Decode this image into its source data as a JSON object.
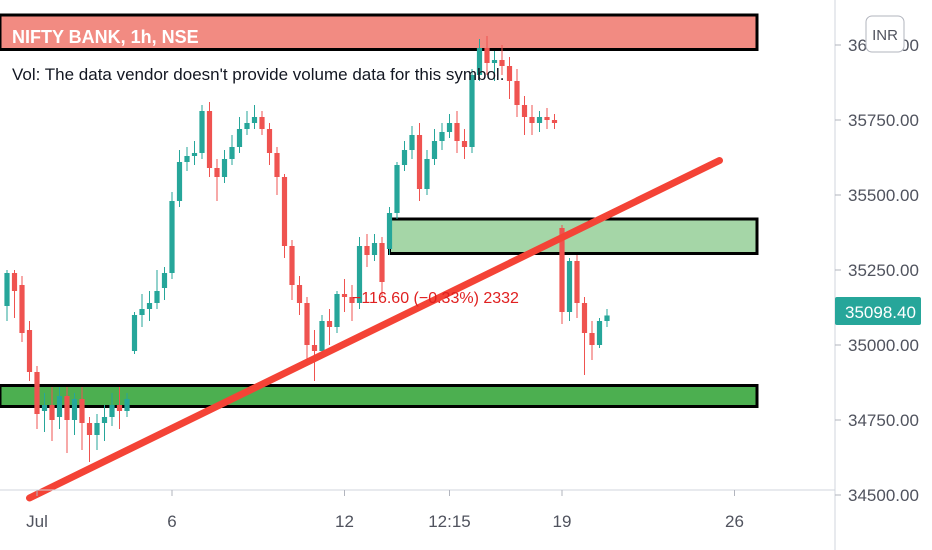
{
  "chart_data": {
    "type": "candlestick",
    "title": "NIFTY BANK, 1h, NSE",
    "volume_note": "Vol: The data vendor doesn't provide volume data for this symbol.",
    "currency_badge": "INR",
    "yticks": [
      {
        "value": 36000,
        "label": "36000.00"
      },
      {
        "value": 35750,
        "label": "35750.00"
      },
      {
        "value": 35500,
        "label": "35500.00"
      },
      {
        "value": 35250,
        "label": "35250.00"
      },
      {
        "value": 35000,
        "label": "35000.00"
      },
      {
        "value": 34750,
        "label": "34750.00"
      },
      {
        "value": 34500,
        "label": "34500.00"
      }
    ],
    "xticks": [
      {
        "bar": 4,
        "label": "Jul"
      },
      {
        "bar": 22,
        "label": "6"
      },
      {
        "bar": 45,
        "label": "12"
      },
      {
        "bar": 59,
        "label": "12:15"
      },
      {
        "bar": 74,
        "label": "19"
      },
      {
        "bar": 97,
        "label": "26"
      }
    ],
    "last_price": {
      "value": 35098.4,
      "label": "35098.40"
    },
    "measure_text": "−116.60 (−0.33%)  2332",
    "trend_line": {
      "from": {
        "bar": 3,
        "price": 34490
      },
      "to": {
        "bar": 95,
        "price": 35615
      }
    },
    "zones": [
      {
        "name": "resistance",
        "from_bar": -4,
        "to_bar": 100,
        "top": 36100,
        "bottom": 35985
      },
      {
        "name": "mid",
        "from_bar": 51,
        "to_bar": 100,
        "top": 35420,
        "bottom": 35305
      },
      {
        "name": "support",
        "from_bar": -4,
        "to_bar": 100,
        "top": 34865,
        "bottom": 34795
      }
    ],
    "colors": {
      "up": "#26a69a",
      "down": "#ef5350",
      "trend": "#f44336",
      "zone_red": "#f28b82",
      "zone_green": "#4caf50",
      "zone_mid": "#a5d6a7",
      "last_price_bg": "#26a69a"
    },
    "candles": [
      [
        35130,
        35250,
        35240,
        35080
      ],
      [
        35240,
        35250,
        35180,
        35090
      ],
      [
        35200,
        35230,
        35040,
        35010
      ],
      [
        35050,
        35080,
        34910,
        34880
      ],
      [
        34910,
        34930,
        34770,
        34720
      ],
      [
        34780,
        34840,
        34800,
        34710
      ],
      [
        34800,
        34860,
        34750,
        34680
      ],
      [
        34760,
        34860,
        34830,
        34720
      ],
      [
        34830,
        34860,
        34750,
        34640
      ],
      [
        34750,
        34840,
        34820,
        34700
      ],
      [
        34820,
        34860,
        34740,
        34650
      ],
      [
        34740,
        34760,
        34700,
        34610
      ],
      [
        34700,
        34770,
        34740,
        34650
      ],
      [
        34740,
        34800,
        34760,
        34680
      ],
      [
        34760,
        34840,
        34800,
        34730
      ],
      [
        34800,
        34860,
        34780,
        34720
      ],
      [
        34780,
        34840,
        34820,
        34760
      ],
      [
        34980,
        35110,
        35100,
        34970
      ],
      [
        35100,
        35170,
        35120,
        35060
      ],
      [
        35120,
        35180,
        35140,
        35080
      ],
      [
        35140,
        35250,
        35180,
        35120
      ],
      [
        35190,
        35260,
        35240,
        35150
      ],
      [
        35240,
        35510,
        35480,
        35220
      ],
      [
        35480,
        35650,
        35610,
        35460
      ],
      [
        35610,
        35660,
        35630,
        35580
      ],
      [
        35630,
        35680,
        35640,
        35600
      ],
      [
        35640,
        35800,
        35780,
        35620
      ],
      [
        35780,
        35810,
        35590,
        35560
      ],
      [
        35590,
        35620,
        35560,
        35480
      ],
      [
        35560,
        35650,
        35620,
        35540
      ],
      [
        35620,
        35700,
        35660,
        35600
      ],
      [
        35660,
        35760,
        35720,
        35640
      ],
      [
        35720,
        35780,
        35740,
        35700
      ],
      [
        35740,
        35800,
        35760,
        35720
      ],
      [
        35760,
        35780,
        35720,
        35700
      ],
      [
        35720,
        35740,
        35640,
        35600
      ],
      [
        35640,
        35660,
        35560,
        35500
      ],
      [
        35560,
        35570,
        35330,
        35290
      ],
      [
        35330,
        35350,
        35200,
        35150
      ],
      [
        35200,
        35230,
        35140,
        35100
      ],
      [
        35140,
        35160,
        35000,
        34930
      ],
      [
        35000,
        35050,
        34980,
        34880
      ],
      [
        34980,
        35100,
        35080,
        34960
      ],
      [
        35080,
        35120,
        35060,
        35000
      ],
      [
        35060,
        35180,
        35170,
        35040
      ],
      [
        35170,
        35220,
        35160,
        35110
      ],
      [
        35160,
        35200,
        35140,
        35080
      ],
      [
        35140,
        35360,
        35330,
        35120
      ],
      [
        35330,
        35370,
        35300,
        35260
      ],
      [
        35300,
        35370,
        35340,
        35280
      ],
      [
        35340,
        35360,
        35210,
        35160
      ],
      [
        35320,
        35460,
        35440,
        35300
      ],
      [
        35440,
        35610,
        35600,
        35420
      ],
      [
        35600,
        35680,
        35650,
        35580
      ],
      [
        35650,
        35730,
        35700,
        35620
      ],
      [
        35700,
        35740,
        35520,
        35480
      ],
      [
        35520,
        35650,
        35620,
        35500
      ],
      [
        35620,
        35720,
        35680,
        35600
      ],
      [
        35680,
        35740,
        35710,
        35650
      ],
      [
        35710,
        35770,
        35740,
        35690
      ],
      [
        35740,
        35780,
        35680,
        35640
      ],
      [
        35680,
        35720,
        35660,
        35620
      ],
      [
        35660,
        35920,
        35900,
        35640
      ],
      [
        35900,
        36020,
        35990,
        35880
      ],
      [
        35990,
        36030,
        35940,
        35900
      ],
      [
        35940,
        35980,
        35950,
        35880
      ],
      [
        35950,
        36000,
        35930,
        35900
      ],
      [
        35930,
        35960,
        35880,
        35820
      ],
      [
        35880,
        35920,
        35800,
        35760
      ],
      [
        35800,
        35830,
        35760,
        35700
      ],
      [
        35760,
        35800,
        35740,
        35700
      ],
      [
        35740,
        35780,
        35760,
        35710
      ],
      [
        35760,
        35790,
        35750,
        35720
      ],
      [
        35750,
        35770,
        35740,
        35720
      ],
      [
        35390,
        35400,
        35110,
        35070
      ],
      [
        35110,
        35290,
        35280,
        35080
      ],
      [
        35280,
        35300,
        35140,
        35090
      ],
      [
        35140,
        35160,
        35040,
        34900
      ],
      [
        35040,
        35080,
        35000,
        34950
      ],
      [
        35000,
        35090,
        35080,
        34990
      ],
      [
        35080,
        35120,
        35098.4,
        35060
      ]
    ]
  }
}
